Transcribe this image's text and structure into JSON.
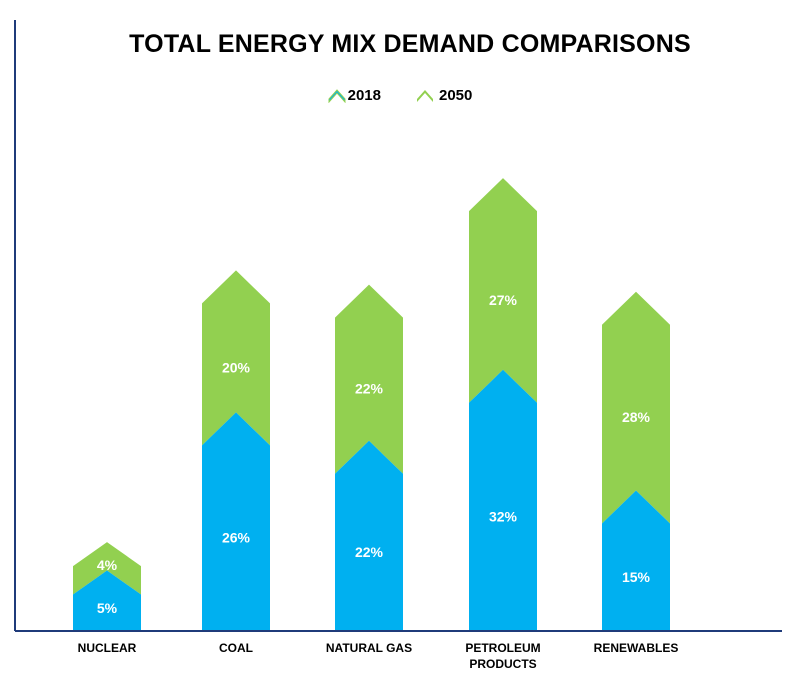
{
  "chart_data": {
    "type": "bar",
    "stacked": true,
    "title": "TOTAL ENERGY MIX DEMAND COMPARISONS",
    "xlabel": "",
    "ylabel": "",
    "categories": [
      "NUCLEAR",
      "COAL",
      "NATURAL GAS",
      "PETROLEUM PRODUCTS",
      "RENEWABLES"
    ],
    "category_lines": [
      [
        "NUCLEAR"
      ],
      [
        "COAL"
      ],
      [
        "NATURAL GAS"
      ],
      [
        "PETROLEUM",
        "PRODUCTS"
      ],
      [
        "RENEWABLES"
      ]
    ],
    "series": [
      {
        "name": "2018",
        "color": "#00B0F0",
        "values": [
          5,
          26,
          22,
          32,
          15
        ],
        "labels": [
          "5%",
          "26%",
          "22%",
          "32%",
          "15%"
        ]
      },
      {
        "name": "2050",
        "color": "#92D050",
        "values": [
          4,
          20,
          22,
          27,
          28
        ],
        "labels": [
          "4%",
          "20%",
          "22%",
          "27%",
          "28%"
        ]
      }
    ],
    "legend_position": "top-center",
    "grid": false,
    "axis_color": "#1F3B7A"
  },
  "legend": {
    "items": [
      {
        "label": "2018",
        "color": "#00B0F0",
        "outline": "#92D050"
      },
      {
        "label": "2050",
        "color": "#92D050"
      }
    ]
  }
}
